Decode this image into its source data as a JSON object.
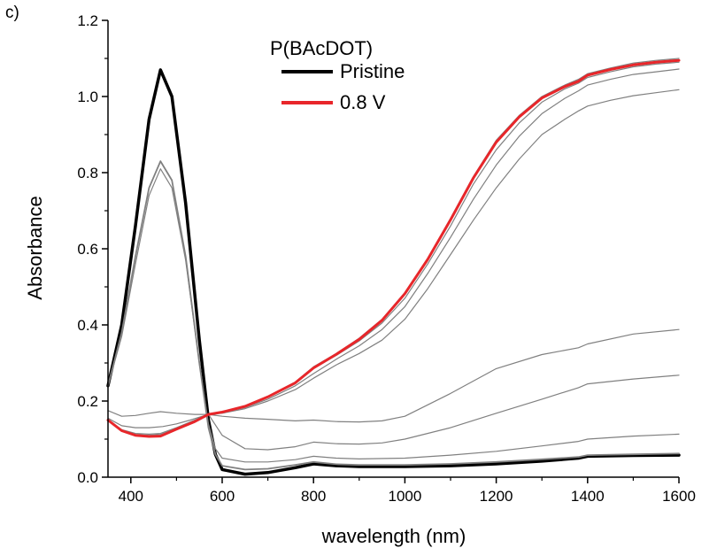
{
  "panel_label": "c)",
  "chart_data": {
    "type": "line",
    "title": "",
    "xlabel": "wavelength (nm)",
    "ylabel": "Absorbance",
    "xlim": [
      350,
      1600
    ],
    "ylim": [
      0.0,
      1.2
    ],
    "x_ticks": [
      400,
      600,
      800,
      1000,
      1200,
      1400,
      1600
    ],
    "y_ticks": [
      0.0,
      0.2,
      0.4,
      0.6,
      0.8,
      1.0,
      1.2
    ],
    "x_tick_labels": [
      "400",
      "600",
      "800",
      "1000",
      "1200",
      "1400",
      "1600"
    ],
    "y_tick_labels": [
      "0.0",
      "0.2",
      "0.4",
      "0.6",
      "0.8",
      "1.0",
      "1.2"
    ],
    "grid": false,
    "legend": {
      "title": "P(BAcDOT)",
      "placement": "top-center",
      "entries": [
        {
          "label": "Pristine",
          "color": "#000000"
        },
        {
          "label": "0.8 V",
          "color": "#e8262a"
        }
      ]
    },
    "series": [
      {
        "name": "Pristine",
        "color": "#000000",
        "width": 3.5,
        "points": [
          [
            350,
            0.24
          ],
          [
            380,
            0.4
          ],
          [
            410,
            0.66
          ],
          [
            440,
            0.94
          ],
          [
            465,
            1.07
          ],
          [
            490,
            1.0
          ],
          [
            520,
            0.72
          ],
          [
            550,
            0.36
          ],
          [
            570,
            0.15
          ],
          [
            585,
            0.06
          ],
          [
            600,
            0.02
          ],
          [
            650,
            0.008
          ],
          [
            700,
            0.012
          ],
          [
            760,
            0.025
          ],
          [
            800,
            0.035
          ],
          [
            850,
            0.03
          ],
          [
            900,
            0.028
          ],
          [
            1000,
            0.028
          ],
          [
            1100,
            0.03
          ],
          [
            1200,
            0.035
          ],
          [
            1300,
            0.042
          ],
          [
            1380,
            0.05
          ],
          [
            1400,
            0.055
          ],
          [
            1500,
            0.057
          ],
          [
            1600,
            0.058
          ]
        ]
      },
      {
        "color": "#808080",
        "width": 1.8,
        "points": [
          [
            350,
            0.24
          ],
          [
            380,
            0.38
          ],
          [
            410,
            0.58
          ],
          [
            440,
            0.76
          ],
          [
            465,
            0.83
          ],
          [
            490,
            0.78
          ],
          [
            520,
            0.58
          ],
          [
            550,
            0.3
          ],
          [
            570,
            0.13
          ],
          [
            585,
            0.06
          ],
          [
            600,
            0.03
          ],
          [
            650,
            0.02
          ],
          [
            700,
            0.022
          ],
          [
            760,
            0.032
          ],
          [
            800,
            0.04
          ],
          [
            850,
            0.034
          ],
          [
            900,
            0.032
          ],
          [
            1000,
            0.032
          ],
          [
            1100,
            0.035
          ],
          [
            1200,
            0.04
          ],
          [
            1300,
            0.047
          ],
          [
            1380,
            0.053
          ],
          [
            1400,
            0.058
          ],
          [
            1500,
            0.06
          ],
          [
            1600,
            0.062
          ]
        ]
      },
      {
        "color": "#808080",
        "width": 1.2,
        "points": [
          [
            350,
            0.24
          ],
          [
            380,
            0.37
          ],
          [
            410,
            0.56
          ],
          [
            440,
            0.74
          ],
          [
            465,
            0.81
          ],
          [
            490,
            0.76
          ],
          [
            520,
            0.57
          ],
          [
            550,
            0.3
          ],
          [
            570,
            0.14
          ],
          [
            585,
            0.075
          ],
          [
            600,
            0.05
          ],
          [
            650,
            0.04
          ],
          [
            700,
            0.04
          ],
          [
            760,
            0.046
          ],
          [
            800,
            0.055
          ],
          [
            850,
            0.05
          ],
          [
            900,
            0.048
          ],
          [
            1000,
            0.05
          ],
          [
            1100,
            0.058
          ],
          [
            1200,
            0.068
          ],
          [
            1300,
            0.082
          ],
          [
            1380,
            0.094
          ],
          [
            1400,
            0.1
          ],
          [
            1500,
            0.108
          ],
          [
            1600,
            0.113
          ]
        ]
      },
      {
        "color": "#808080",
        "width": 1.2,
        "points": [
          [
            350,
            0.155
          ],
          [
            380,
            0.135
          ],
          [
            410,
            0.13
          ],
          [
            440,
            0.13
          ],
          [
            470,
            0.133
          ],
          [
            500,
            0.14
          ],
          [
            530,
            0.15
          ],
          [
            570,
            0.165
          ],
          [
            600,
            0.11
          ],
          [
            650,
            0.075
          ],
          [
            700,
            0.072
          ],
          [
            760,
            0.08
          ],
          [
            800,
            0.092
          ],
          [
            850,
            0.088
          ],
          [
            900,
            0.087
          ],
          [
            950,
            0.09
          ],
          [
            1000,
            0.1
          ],
          [
            1100,
            0.13
          ],
          [
            1200,
            0.168
          ],
          [
            1300,
            0.205
          ],
          [
            1380,
            0.235
          ],
          [
            1400,
            0.245
          ],
          [
            1500,
            0.258
          ],
          [
            1600,
            0.268
          ]
        ]
      },
      {
        "color": "#808080",
        "width": 1.2,
        "points": [
          [
            350,
            0.175
          ],
          [
            380,
            0.16
          ],
          [
            410,
            0.162
          ],
          [
            440,
            0.168
          ],
          [
            465,
            0.172
          ],
          [
            500,
            0.168
          ],
          [
            540,
            0.165
          ],
          [
            570,
            0.165
          ],
          [
            600,
            0.16
          ],
          [
            650,
            0.155
          ],
          [
            700,
            0.152
          ],
          [
            760,
            0.148
          ],
          [
            800,
            0.15
          ],
          [
            850,
            0.146
          ],
          [
            900,
            0.145
          ],
          [
            950,
            0.148
          ],
          [
            1000,
            0.16
          ],
          [
            1100,
            0.22
          ],
          [
            1200,
            0.285
          ],
          [
            1300,
            0.322
          ],
          [
            1380,
            0.34
          ],
          [
            1400,
            0.35
          ],
          [
            1500,
            0.376
          ],
          [
            1600,
            0.388
          ]
        ]
      },
      {
        "color": "#808080",
        "width": 1.2,
        "points": [
          [
            350,
            0.15
          ],
          [
            380,
            0.125
          ],
          [
            410,
            0.115
          ],
          [
            440,
            0.113
          ],
          [
            465,
            0.115
          ],
          [
            500,
            0.13
          ],
          [
            540,
            0.15
          ],
          [
            570,
            0.165
          ],
          [
            600,
            0.168
          ],
          [
            650,
            0.18
          ],
          [
            700,
            0.2
          ],
          [
            760,
            0.23
          ],
          [
            800,
            0.26
          ],
          [
            850,
            0.295
          ],
          [
            900,
            0.325
          ],
          [
            950,
            0.36
          ],
          [
            1000,
            0.415
          ],
          [
            1050,
            0.495
          ],
          [
            1100,
            0.585
          ],
          [
            1150,
            0.675
          ],
          [
            1200,
            0.76
          ],
          [
            1250,
            0.835
          ],
          [
            1300,
            0.9
          ],
          [
            1350,
            0.94
          ],
          [
            1380,
            0.962
          ],
          [
            1400,
            0.975
          ],
          [
            1450,
            0.99
          ],
          [
            1500,
            1.002
          ],
          [
            1550,
            1.01
          ],
          [
            1600,
            1.018
          ]
        ]
      },
      {
        "color": "#808080",
        "width": 1.2,
        "points": [
          [
            350,
            0.15
          ],
          [
            380,
            0.123
          ],
          [
            410,
            0.112
          ],
          [
            440,
            0.11
          ],
          [
            465,
            0.112
          ],
          [
            500,
            0.128
          ],
          [
            540,
            0.148
          ],
          [
            570,
            0.165
          ],
          [
            600,
            0.17
          ],
          [
            650,
            0.183
          ],
          [
            700,
            0.205
          ],
          [
            760,
            0.24
          ],
          [
            800,
            0.272
          ],
          [
            850,
            0.31
          ],
          [
            900,
            0.345
          ],
          [
            950,
            0.388
          ],
          [
            1000,
            0.448
          ],
          [
            1050,
            0.535
          ],
          [
            1100,
            0.63
          ],
          [
            1150,
            0.73
          ],
          [
            1200,
            0.82
          ],
          [
            1250,
            0.895
          ],
          [
            1300,
            0.955
          ],
          [
            1350,
            0.995
          ],
          [
            1380,
            1.015
          ],
          [
            1400,
            1.03
          ],
          [
            1450,
            1.045
          ],
          [
            1500,
            1.058
          ],
          [
            1550,
            1.065
          ],
          [
            1600,
            1.072
          ]
        ]
      },
      {
        "color": "#808080",
        "width": 1.2,
        "points": [
          [
            350,
            0.15
          ],
          [
            380,
            0.122
          ],
          [
            410,
            0.11
          ],
          [
            440,
            0.108
          ],
          [
            465,
            0.11
          ],
          [
            500,
            0.127
          ],
          [
            540,
            0.147
          ],
          [
            570,
            0.165
          ],
          [
            600,
            0.172
          ],
          [
            650,
            0.186
          ],
          [
            700,
            0.21
          ],
          [
            760,
            0.245
          ],
          [
            800,
            0.285
          ],
          [
            850,
            0.32
          ],
          [
            900,
            0.358
          ],
          [
            950,
            0.405
          ],
          [
            1000,
            0.47
          ],
          [
            1050,
            0.56
          ],
          [
            1100,
            0.66
          ],
          [
            1150,
            0.77
          ],
          [
            1200,
            0.86
          ],
          [
            1250,
            0.93
          ],
          [
            1300,
            0.985
          ],
          [
            1350,
            1.02
          ],
          [
            1380,
            1.035
          ],
          [
            1400,
            1.05
          ],
          [
            1450,
            1.065
          ],
          [
            1500,
            1.078
          ],
          [
            1550,
            1.085
          ],
          [
            1600,
            1.09
          ]
        ]
      },
      {
        "color": "#808080",
        "width": 1.2,
        "points": [
          [
            350,
            0.15
          ],
          [
            380,
            0.122
          ],
          [
            410,
            0.11
          ],
          [
            440,
            0.108
          ],
          [
            465,
            0.11
          ],
          [
            500,
            0.127
          ],
          [
            540,
            0.147
          ],
          [
            570,
            0.165
          ],
          [
            600,
            0.172
          ],
          [
            650,
            0.187
          ],
          [
            700,
            0.212
          ],
          [
            760,
            0.25
          ],
          [
            800,
            0.29
          ],
          [
            850,
            0.325
          ],
          [
            900,
            0.365
          ],
          [
            950,
            0.415
          ],
          [
            1000,
            0.485
          ],
          [
            1050,
            0.575
          ],
          [
            1100,
            0.68
          ],
          [
            1150,
            0.79
          ],
          [
            1200,
            0.885
          ],
          [
            1250,
            0.95
          ],
          [
            1300,
            1.0
          ],
          [
            1350,
            1.03
          ],
          [
            1380,
            1.045
          ],
          [
            1400,
            1.06
          ],
          [
            1450,
            1.075
          ],
          [
            1500,
            1.088
          ],
          [
            1550,
            1.095
          ],
          [
            1600,
            1.1
          ]
        ]
      },
      {
        "name": "0.8 V",
        "color": "#e8262a",
        "width": 3,
        "points": [
          [
            350,
            0.15
          ],
          [
            380,
            0.122
          ],
          [
            410,
            0.11
          ],
          [
            440,
            0.107
          ],
          [
            465,
            0.108
          ],
          [
            500,
            0.126
          ],
          [
            540,
            0.146
          ],
          [
            570,
            0.165
          ],
          [
            600,
            0.171
          ],
          [
            650,
            0.186
          ],
          [
            700,
            0.211
          ],
          [
            760,
            0.248
          ],
          [
            800,
            0.287
          ],
          [
            850,
            0.323
          ],
          [
            900,
            0.362
          ],
          [
            950,
            0.412
          ],
          [
            1000,
            0.482
          ],
          [
            1050,
            0.572
          ],
          [
            1100,
            0.676
          ],
          [
            1150,
            0.786
          ],
          [
            1200,
            0.88
          ],
          [
            1250,
            0.946
          ],
          [
            1300,
            0.996
          ],
          [
            1350,
            1.026
          ],
          [
            1380,
            1.04
          ],
          [
            1400,
            1.056
          ],
          [
            1450,
            1.071
          ],
          [
            1500,
            1.083
          ],
          [
            1550,
            1.09
          ],
          [
            1600,
            1.095
          ]
        ]
      }
    ]
  }
}
